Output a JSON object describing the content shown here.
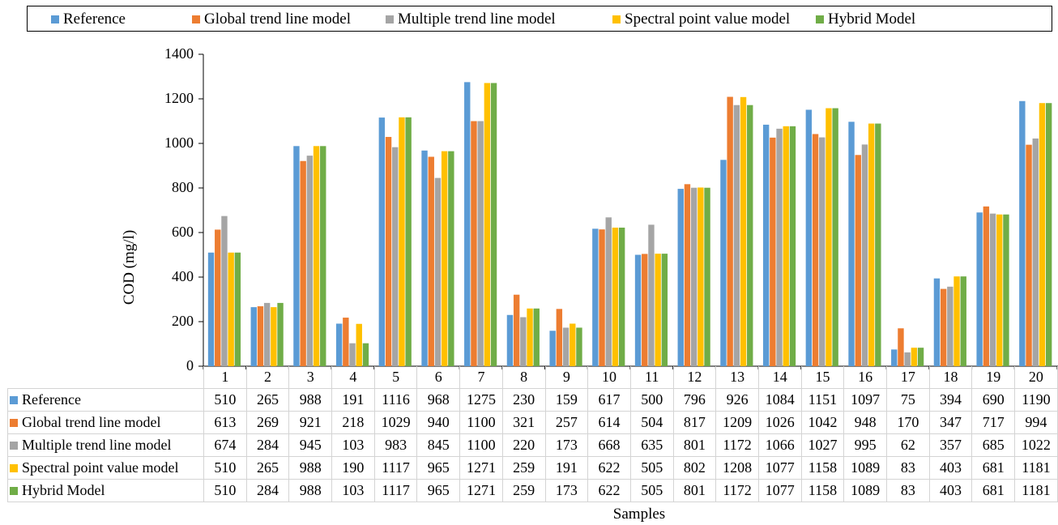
{
  "chart_data": {
    "type": "bar",
    "ylabel": "COD (mg/l)",
    "xlabel": "Samples",
    "ylim": [
      0,
      1400
    ],
    "yticks": [
      "0",
      "200",
      "400",
      "600",
      "800",
      "1000",
      "1200",
      "1400"
    ],
    "grid": false,
    "legend_position": "top",
    "categories": [
      "1",
      "2",
      "3",
      "4",
      "5",
      "6",
      "7",
      "8",
      "9",
      "10",
      "11",
      "12",
      "13",
      "14",
      "15",
      "16",
      "17",
      "18",
      "19",
      "20"
    ],
    "series": [
      {
        "name": "Reference",
        "color": "#5B9BD5",
        "values": [
          510,
          265,
          988,
          191,
          1116,
          968,
          1275,
          230,
          159,
          617,
          500,
          796,
          926,
          1084,
          1151,
          1097,
          75,
          394,
          690,
          1190
        ]
      },
      {
        "name": "Global trend line model",
        "color": "#ED7D31",
        "values": [
          613,
          269,
          921,
          218,
          1029,
          940,
          1100,
          321,
          257,
          614,
          504,
          817,
          1209,
          1026,
          1042,
          948,
          170,
          347,
          717,
          994
        ]
      },
      {
        "name": "Multiple trend line model",
        "color": "#A5A5A5",
        "values": [
          674,
          284,
          945,
          103,
          983,
          845,
          1100,
          220,
          173,
          668,
          635,
          801,
          1172,
          1066,
          1027,
          995,
          62,
          357,
          685,
          1022
        ]
      },
      {
        "name": "Spectral point value model",
        "color": "#FFC000",
        "values": [
          510,
          265,
          988,
          190,
          1117,
          965,
          1271,
          259,
          191,
          622,
          505,
          802,
          1208,
          1077,
          1158,
          1089,
          83,
          403,
          681,
          1181
        ]
      },
      {
        "name": "Hybrid Model",
        "color": "#70AD47",
        "values": [
          510,
          284,
          988,
          103,
          1117,
          965,
          1271,
          259,
          173,
          622,
          505,
          801,
          1172,
          1077,
          1158,
          1089,
          83,
          403,
          681,
          1181
        ]
      }
    ]
  }
}
